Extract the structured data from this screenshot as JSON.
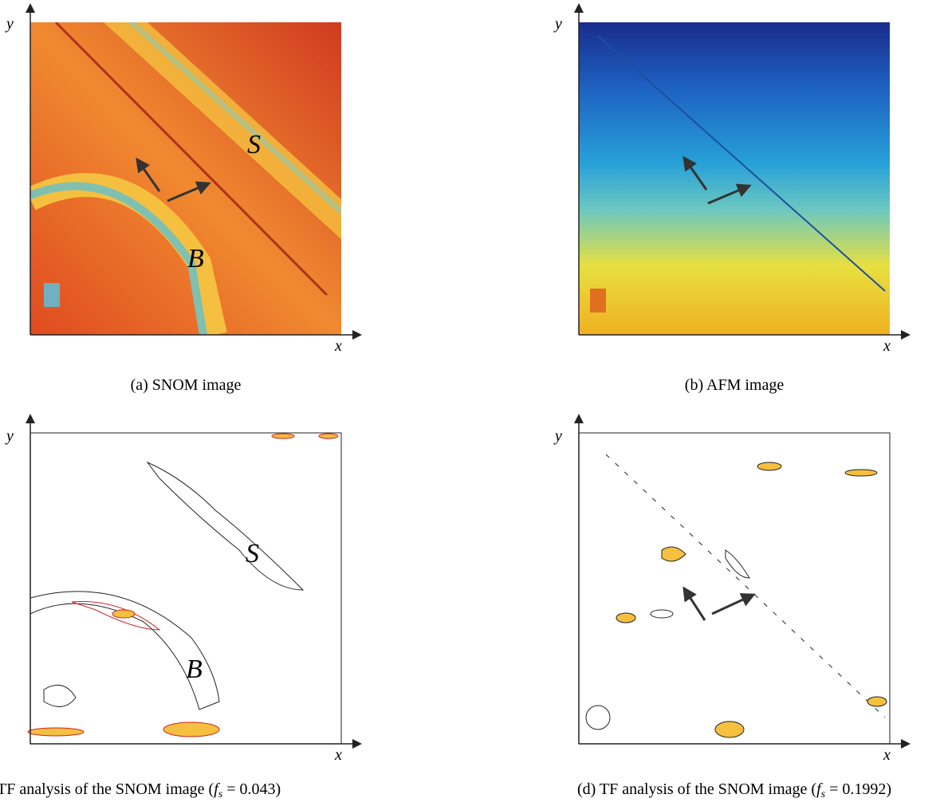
{
  "panels": [
    {
      "x_label": "x",
      "y_label": "y",
      "annotations": [
        "S",
        "B"
      ],
      "caption": {
        "prefix": "(a) SNOM image"
      }
    },
    {
      "x_label": "x",
      "y_label": "y",
      "caption": {
        "prefix": "(b) AFM image"
      }
    },
    {
      "x_label": "x",
      "y_label": "y",
      "annotations": [
        "S",
        "B"
      ],
      "caption": {
        "prefix": "TF analysis of the SNOM image (",
        "var": "f",
        "sub": "s",
        "suffix": " = 0.043)"
      }
    },
    {
      "x_label": "x",
      "y_label": "y",
      "caption": {
        "prefix": "(d) TF analysis of the SNOM image (",
        "var": "f",
        "sub": "s",
        "suffix": " = 0.1992)"
      }
    }
  ]
}
